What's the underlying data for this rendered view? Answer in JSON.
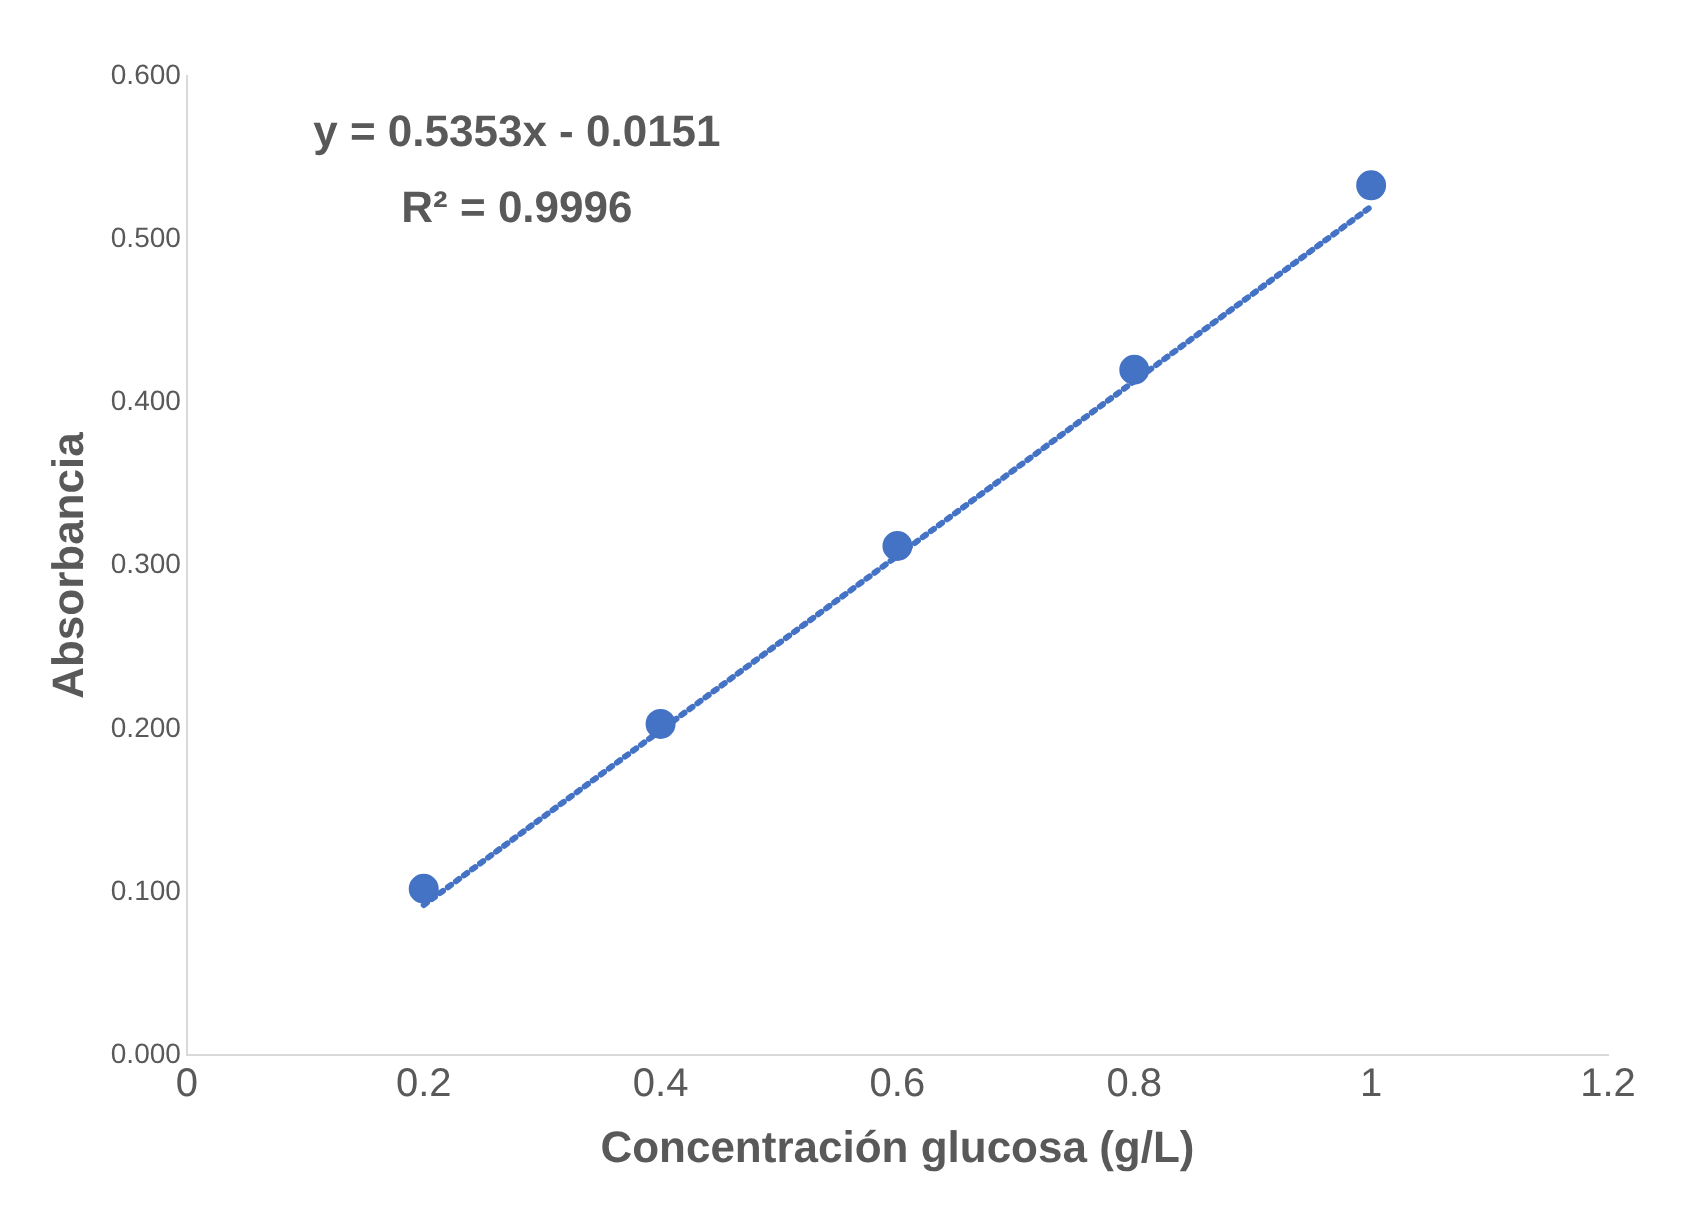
{
  "chart_data": {
    "type": "scatter",
    "xlabel": "Concentración glucosa (g/L)",
    "ylabel": "Absorbancia",
    "xlim": [
      0,
      1.2
    ],
    "xticks": [
      0,
      0.2,
      0.4,
      0.6,
      0.8,
      1,
      1.2
    ],
    "ylim": [
      0,
      0.6
    ],
    "yticks": [
      {
        "value": 0,
        "label": "0.000"
      },
      {
        "value": 0.1,
        "label": "0.100"
      },
      {
        "value": 0.2,
        "label": "0.200"
      },
      {
        "value": 0.3,
        "label": "0.300"
      },
      {
        "value": 0.4,
        "label": "0.400"
      },
      {
        "value": 0.5,
        "label": "0.500"
      },
      {
        "value": 0.6,
        "label": "0.600"
      }
    ],
    "grid": false,
    "legend": false,
    "marker": "circle",
    "series": [
      {
        "type": "scatter",
        "color": "#4472c4",
        "x": [
          0.2,
          0.4,
          0.6,
          0.8,
          1
        ],
        "values": [
          0.102,
          0.203,
          0.312,
          0.42,
          0.533
        ]
      },
      {
        "type": "line",
        "color": "#4472c4",
        "line_style": "dotted",
        "marker": "none",
        "x": [
          0.2,
          1
        ],
        "values": [
          0.092,
          0.52
        ]
      }
    ],
    "annotations": [
      "y = 0.5353x - 0.0151",
      "R² = 0.9996"
    ]
  }
}
